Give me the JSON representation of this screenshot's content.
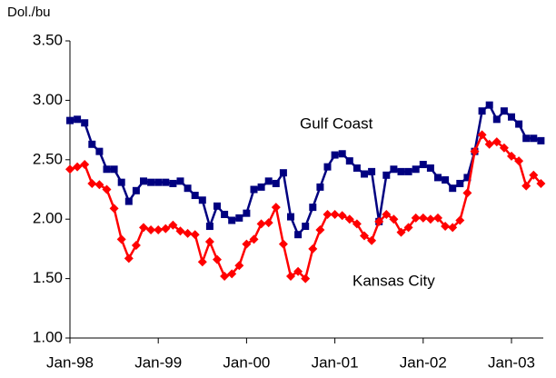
{
  "chart_data": {
    "type": "line",
    "y_label": "Dol./bu",
    "annotations": [
      "Gulf Coast",
      "Kansas City"
    ],
    "categories": [
      "Jan-98",
      null,
      null,
      null,
      null,
      null,
      null,
      null,
      null,
      null,
      null,
      null,
      "Jan-99",
      null,
      null,
      null,
      null,
      null,
      null,
      null,
      null,
      null,
      null,
      null,
      "Jan-00",
      null,
      null,
      null,
      null,
      null,
      null,
      null,
      null,
      null,
      null,
      null,
      "Jan-01",
      null,
      null,
      null,
      null,
      null,
      null,
      null,
      null,
      null,
      null,
      null,
      "Jan-02",
      null,
      null,
      null,
      null,
      null,
      null,
      null,
      null,
      null,
      null,
      null,
      "Jan-03",
      null,
      null,
      null,
      null
    ],
    "series": [
      {
        "name": "Gulf Coast",
        "color": "#000080",
        "marker": "square",
        "values": [
          2.83,
          2.84,
          2.81,
          2.63,
          2.57,
          2.42,
          2.42,
          2.31,
          2.15,
          2.24,
          2.32,
          2.31,
          2.31,
          2.31,
          2.3,
          2.32,
          2.26,
          2.2,
          2.16,
          1.94,
          2.11,
          2.04,
          1.99,
          2.01,
          2.05,
          2.25,
          2.27,
          2.32,
          2.3,
          2.39,
          2.02,
          1.87,
          1.94,
          2.1,
          2.27,
          2.44,
          2.54,
          2.55,
          2.49,
          2.43,
          2.38,
          2.4,
          1.98,
          2.37,
          2.42,
          2.4,
          2.4,
          2.42,
          2.46,
          2.43,
          2.35,
          2.33,
          2.26,
          2.3,
          2.35,
          2.57,
          2.91,
          2.96,
          2.84,
          2.91,
          2.86,
          2.8,
          2.68,
          2.68,
          2.66
        ]
      },
      {
        "name": "Kansas City",
        "color": "#ff0000",
        "marker": "diamond",
        "values": [
          2.42,
          2.44,
          2.46,
          2.3,
          2.29,
          2.25,
          2.09,
          1.83,
          1.67,
          1.78,
          1.93,
          1.91,
          1.91,
          1.92,
          1.95,
          1.9,
          1.88,
          1.87,
          1.64,
          1.81,
          1.66,
          1.52,
          1.54,
          1.61,
          1.79,
          1.83,
          1.96,
          1.97,
          2.1,
          1.79,
          1.52,
          1.56,
          1.5,
          1.75,
          1.91,
          2.04,
          2.04,
          2.03,
          2.0,
          1.96,
          1.86,
          1.82,
          1.98,
          2.04,
          2.0,
          1.89,
          1.93,
          2.01,
          2.01,
          2.0,
          2.01,
          1.94,
          1.93,
          1.99,
          2.22,
          2.57,
          2.71,
          2.63,
          2.65,
          2.6,
          2.53,
          2.49,
          2.28,
          2.37,
          2.3
        ]
      }
    ],
    "ylim": [
      1.0,
      3.5
    ],
    "yticks": [
      {
        "value": 1.0,
        "label": "1.00"
      },
      {
        "value": 1.5,
        "label": "1.50"
      },
      {
        "value": 2.0,
        "label": "2.00"
      },
      {
        "value": 2.5,
        "label": "2.50"
      },
      {
        "value": 3.0,
        "label": "3.00"
      },
      {
        "value": 3.5,
        "label": "3.50"
      }
    ],
    "grid": false
  }
}
